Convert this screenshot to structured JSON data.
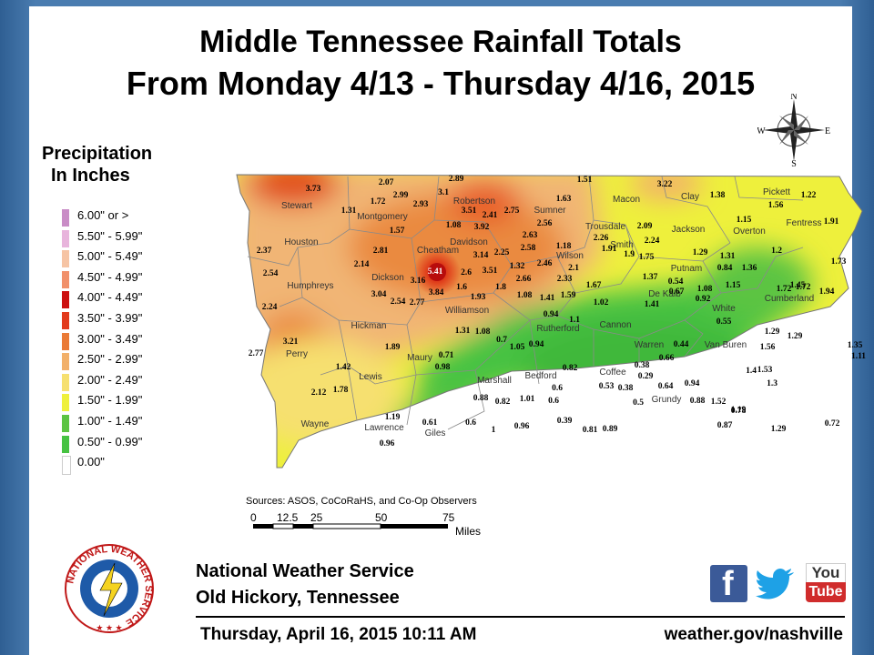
{
  "header": {
    "title_line1": "Middle Tennessee Rainfall Totals",
    "title_line2": "From Monday 4/13 - Thursday 4/16, 2015"
  },
  "legend": {
    "title_line1": "Precipitation",
    "title_line2": "In Inches",
    "items": [
      {
        "label": "6.00\" or >",
        "color": "#c98cc6"
      },
      {
        "label": "5.50\" - 5.99\"",
        "color": "#e8b4dc"
      },
      {
        "label": "5.00\" - 5.49\"",
        "color": "#f6c4a4"
      },
      {
        "label": "4.50\" - 4.99\"",
        "color": "#f1906a"
      },
      {
        "label": "4.00\" - 4.49\"",
        "color": "#cc1010"
      },
      {
        "label": "3.50\" - 3.99\"",
        "color": "#e23a1c"
      },
      {
        "label": "3.00\" - 3.49\"",
        "color": "#ea7a36"
      },
      {
        "label": "2.50\" - 2.99\"",
        "color": "#f2b06a"
      },
      {
        "label": "2.00\" - 2.49\"",
        "color": "#f6e070"
      },
      {
        "label": "1.50\" - 1.99\"",
        "color": "#eef03c"
      },
      {
        "label": "1.00\" - 1.49\"",
        "color": "#5cc442"
      },
      {
        "label": "0.50\" - 0.99\"",
        "color": "#46c242"
      },
      {
        "label": "0.00\"",
        "color": "#ffffff"
      }
    ]
  },
  "compass": {
    "n": "N",
    "e": "E",
    "s": "S",
    "w": "W"
  },
  "counties": [
    "Stewart",
    "Montgomery",
    "Robertson",
    "Sumner",
    "Macon",
    "Clay",
    "Pickett",
    "Houston",
    "Trousdale",
    "Smith",
    "Jackson",
    "Overton",
    "Fentress",
    "Cheatham",
    "Davidson",
    "Wilson",
    "Humphreys",
    "Dickson",
    "Putnam",
    "De Kalb",
    "White",
    "Cumberland",
    "Williamson",
    "Rutherford",
    "Cannon",
    "Hickman",
    "Perry",
    "Maury",
    "Warren",
    "Van Buren",
    "Lewis",
    "Marshall",
    "Bedford",
    "Coffee",
    "Grundy",
    "Wayne",
    "Lawrence",
    "Giles"
  ],
  "values": [
    "3.73",
    "2.07",
    "2.89",
    "1.51",
    "3.22",
    "1.38",
    "1.56",
    "1.22",
    "2.99",
    "3.1",
    "1.72",
    "2.93",
    "1.31",
    "3.51",
    "2.41",
    "2.75",
    "1.63",
    "1.57",
    "1.08",
    "3.92",
    "2.56",
    "2.26",
    "2.09",
    "2.24",
    "1.15",
    "1.91",
    "2.37",
    "2.81",
    "3.14",
    "2.25",
    "2.63",
    "2.58",
    "1.18",
    "1.91",
    "1.9",
    "1.75",
    "1.29",
    "1.31",
    "1.2",
    "1.73",
    "2.54",
    "2.14",
    "5.41",
    "2.6",
    "3.51",
    "2.46",
    "2.1",
    "0.84",
    "1.36",
    "3.16",
    "1.32",
    "1.37",
    "0.54",
    "1.08",
    "1.15",
    "1.45",
    "2.66",
    "2.33",
    "0.67",
    "1.94",
    "3.04",
    "2.54",
    "2.77",
    "3.84",
    "1.6",
    "1.8",
    "1.67",
    "1.72",
    "1.72",
    "2.24",
    "1.93",
    "1.08",
    "1.41",
    "1.59",
    "1.41",
    "0.92",
    "1.02",
    "0.55",
    "0.94",
    "1.1",
    "1.31",
    "1.08",
    "1.29",
    "1.29",
    "3.21",
    "0.7",
    "1.05",
    "0.94",
    "0.44",
    "1.56",
    "1.35",
    "2.77",
    "1.89",
    "0.71",
    "0.38",
    "0.66",
    "1.11",
    "1.42",
    "0.98",
    "0.82",
    "1.53",
    "1.4",
    "0.6",
    "0.29",
    "0.53",
    "0.38",
    "0.64",
    "0.94",
    "1.3",
    "2.12",
    "1.78",
    "0.88",
    "0.82",
    "1.01",
    "0.6",
    "0.5",
    "0.88",
    "1.52",
    "1.19",
    "1.19",
    "0.78",
    "0.61",
    "0.6",
    "0.39",
    "0.96",
    "1",
    "0.81",
    "0.89",
    "0.87",
    "1.29",
    "0.72",
    "0.96"
  ],
  "sources": "Sources: ASOS, CoCoRaHS, and Co-Op Observers",
  "scale": {
    "ticks": [
      "0",
      "12.5",
      "25",
      "50",
      "75"
    ],
    "unit": "Miles"
  },
  "footer": {
    "org_line1": "National Weather Service",
    "org_line2": "Old Hickory, Tennessee",
    "datetime": "Thursday, April 16, 2015 10:11 AM",
    "website": "weather.gov/nashville",
    "logo_ring_text": "NATIONAL WEATHER SERVICE"
  },
  "social": {
    "facebook": "f",
    "youtube_top": "You",
    "youtube_bottom": "Tube"
  }
}
